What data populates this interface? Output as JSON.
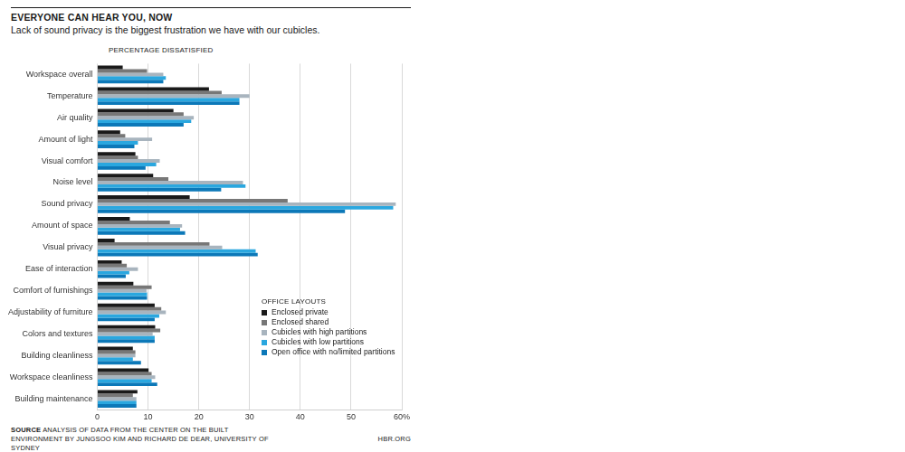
{
  "chart_data": {
    "type": "bar",
    "orientation": "horizontal",
    "title": "EVERYONE CAN HEAR YOU, NOW",
    "subtitle": "Lack of sound privacy is the biggest frustration we have with our cubicles.",
    "xlabel": "PERCENTAGE DISSATISFIED",
    "categories": [
      "Workspace overall",
      "Temperature",
      "Air quality",
      "Amount of light",
      "Visual comfort",
      "Noise level",
      "Sound privacy",
      "Amount of space",
      "Visual privacy",
      "Ease of interaction",
      "Comfort of furnishings",
      "Adjustability of furniture",
      "Colors and textures",
      "Building cleanliness",
      "Workspace cleanliness",
      "Building maintenance"
    ],
    "series": [
      {
        "name": "Enclosed private",
        "color": "#1a1a1a",
        "values": [
          5,
          22,
          15,
          4.5,
          7.5,
          11,
          18.2,
          6.4,
          3.4,
          4.8,
          7.1,
          11.3,
          11.4,
          7,
          10.1,
          7.9
        ]
      },
      {
        "name": "Enclosed shared",
        "color": "#777777",
        "values": [
          9.8,
          24.5,
          17,
          5.5,
          8,
          14,
          37.5,
          14.3,
          22.1,
          5.8,
          10.7,
          12.6,
          12.4,
          7.5,
          10.7,
          7
        ]
      },
      {
        "name": "Cubicles with high partitions",
        "color": "#a8b4be",
        "values": [
          13,
          30,
          19,
          10.8,
          12.3,
          28.7,
          58.8,
          16.7,
          24.6,
          8,
          9.7,
          13.5,
          10.9,
          7.5,
          11.4,
          7.7
        ]
      },
      {
        "name": "Cubicles with low partitions",
        "color": "#2aa7df",
        "values": [
          13.5,
          28,
          18.5,
          8,
          11.6,
          29.2,
          58.3,
          16.3,
          31.2,
          6.3,
          9.8,
          12.2,
          11.3,
          7,
          10.7,
          7.7
        ]
      },
      {
        "name": "Open office with no/limited partitions",
        "color": "#0c78b8",
        "values": [
          13,
          28,
          17,
          7.3,
          9.5,
          24.4,
          48.8,
          17.3,
          31.6,
          5.6,
          9.8,
          11.3,
          11.3,
          8.6,
          11.8,
          7.7
        ]
      }
    ],
    "xlim": [
      0,
      60
    ],
    "xticks": [
      0,
      10,
      20,
      30,
      40,
      50,
      {
        "value": 60,
        "label": "60%"
      }
    ],
    "grid": true,
    "legend": "lower right",
    "legend_title": "OFFICE LAYOUTS",
    "source_label": "SOURCE",
    "source": "ANALYSIS OF DATA FROM THE CENTER ON THE BUILT ENVIRONMENT BY JUNGSOO KIM AND RICHARD DE DEAR, UNIVERSITY OF SYDNEY",
    "credit": "HBR.ORG"
  }
}
